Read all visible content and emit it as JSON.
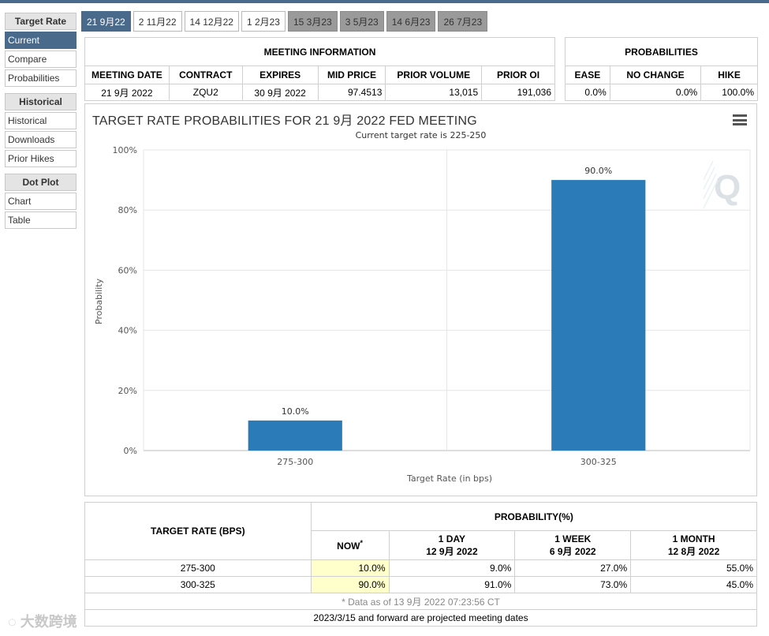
{
  "sidebar": {
    "sections": [
      {
        "title": "Target Rate",
        "items": [
          "Current",
          "Compare",
          "Probabilities"
        ],
        "active": "Current"
      },
      {
        "title": "Historical",
        "items": [
          "Historical",
          "Downloads",
          "Prior Hikes"
        ]
      },
      {
        "title": "Dot Plot",
        "items": [
          "Chart",
          "Table"
        ]
      }
    ]
  },
  "tabs": [
    {
      "label": "21 9月22",
      "state": "active"
    },
    {
      "label": "2 11月22",
      "state": "normal"
    },
    {
      "label": "14 12月22",
      "state": "normal"
    },
    {
      "label": "1 2月23",
      "state": "normal"
    },
    {
      "label": "15 3月23",
      "state": "projected"
    },
    {
      "label": "3 5月23",
      "state": "projected"
    },
    {
      "label": "14 6月23",
      "state": "projected"
    },
    {
      "label": "26 7月23",
      "state": "projected"
    }
  ],
  "meeting_info": {
    "title": "MEETING INFORMATION",
    "headers": [
      "MEETING DATE",
      "CONTRACT",
      "EXPIRES",
      "MID PRICE",
      "PRIOR VOLUME",
      "PRIOR OI"
    ],
    "row": [
      "21 9月 2022",
      "ZQU2",
      "30 9月 2022",
      "97.4513",
      "13,015",
      "191,036"
    ]
  },
  "probabilities": {
    "title": "PROBABILITIES",
    "headers": [
      "EASE",
      "NO CHANGE",
      "HIKE"
    ],
    "row": [
      "0.0%",
      "0.0%",
      "100.0%"
    ]
  },
  "chart": {
    "title": "TARGET RATE PROBABILITIES FOR 21 9月 2022 FED MEETING",
    "subtitle": "Current target rate is 225-250",
    "menu_icon": "hamburger-menu-icon",
    "logo_icon": "q-logo-icon"
  },
  "chart_data": {
    "type": "bar",
    "categories": [
      "275-300",
      "300-325"
    ],
    "values": [
      10.0,
      90.0
    ],
    "data_labels": [
      "10.0%",
      "90.0%"
    ],
    "xlabel": "Target Rate (in bps)",
    "ylabel": "Probability",
    "ylim": [
      0,
      100
    ],
    "yticks": [
      "0%",
      "20%",
      "40%",
      "60%",
      "80%",
      "100%"
    ],
    "bar_color": "#2b7bb9",
    "grid": true
  },
  "bottom_table": {
    "rate_header": "TARGET RATE (BPS)",
    "prob_header": "PROBABILITY(%)",
    "cols": [
      {
        "label": "NOW",
        "date": "",
        "sup": "*"
      },
      {
        "label": "1 DAY",
        "date": "12 9月 2022"
      },
      {
        "label": "1 WEEK",
        "date": "6 9月 2022"
      },
      {
        "label": "1 MONTH",
        "date": "12 8月 2022"
      }
    ],
    "rows": [
      {
        "rate": "275-300",
        "values": [
          "10.0%",
          "9.0%",
          "27.0%",
          "55.0%"
        ]
      },
      {
        "rate": "300-325",
        "values": [
          "90.0%",
          "91.0%",
          "73.0%",
          "45.0%"
        ]
      }
    ],
    "note": "* Data as of 13 9月 2022 07:23:56 CT",
    "footer": "2023/3/15 and forward are projected meeting dates"
  },
  "watermark": "大数跨境"
}
